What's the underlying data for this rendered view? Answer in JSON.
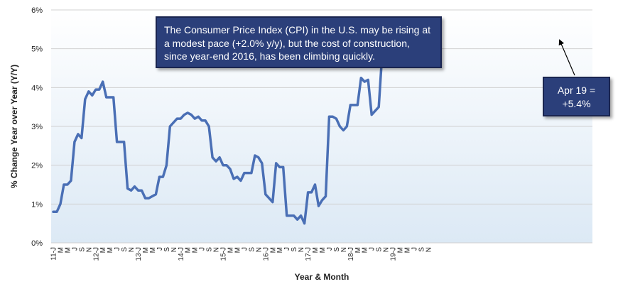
{
  "chart_data": {
    "type": "line",
    "ylabel": "% Change Year over Year (Y/Y)",
    "xlabel": "Year & Month",
    "ylim": [
      0,
      6
    ],
    "y_ticks": [
      "0%",
      "1%",
      "2%",
      "3%",
      "4%",
      "5%",
      "6%"
    ],
    "grid": true,
    "x_tick_labels": [
      "11-J",
      "M",
      "M",
      "J",
      "S",
      "N",
      "12-J",
      "M",
      "M",
      "J",
      "S",
      "N",
      "13-J",
      "M",
      "M",
      "J",
      "S",
      "N",
      "14-J",
      "M",
      "M",
      "J",
      "S",
      "N",
      "15-J",
      "M",
      "M",
      "J",
      "S",
      "N",
      "16-J",
      "M",
      "M",
      "J",
      "S",
      "N",
      "17-J",
      "M",
      "M",
      "J",
      "S",
      "N",
      "18-J",
      "M",
      "M",
      "J",
      "S",
      "N",
      "19-J",
      "M",
      "M",
      "J",
      "S",
      "N"
    ],
    "series": [
      {
        "color": "#4a6fb5",
        "values": [
          0.8,
          0.8,
          1.0,
          1.5,
          1.5,
          1.6,
          2.6,
          2.8,
          2.7,
          3.7,
          3.9,
          3.8,
          3.95,
          3.95,
          4.15,
          3.75,
          3.75,
          3.75,
          2.6,
          2.6,
          2.6,
          1.4,
          1.35,
          1.45,
          1.35,
          1.35,
          1.15,
          1.15,
          1.2,
          1.25,
          1.7,
          1.7,
          2.0,
          3.0,
          3.1,
          3.2,
          3.2,
          3.3,
          3.35,
          3.3,
          3.2,
          3.25,
          3.15,
          3.15,
          3.0,
          2.2,
          2.1,
          2.2,
          2.0,
          2.0,
          1.9,
          1.65,
          1.7,
          1.6,
          1.8,
          1.8,
          1.8,
          2.25,
          2.2,
          2.05,
          1.25,
          1.15,
          1.05,
          2.05,
          1.95,
          1.95,
          0.7,
          0.7,
          0.7,
          0.6,
          0.7,
          0.5,
          1.3,
          1.3,
          1.5,
          0.95,
          1.1,
          1.2,
          3.25,
          3.25,
          3.2,
          3.0,
          2.9,
          3.0,
          3.55,
          3.55,
          3.55,
          4.25,
          4.15,
          4.2,
          3.3,
          3.4,
          3.5,
          4.9,
          5.15,
          5.15,
          4.85,
          4.8,
          4.9,
          5.4
        ]
      }
    ],
    "annotations": [
      {
        "id": "main",
        "text": "The Consumer Price Index (CPI) in the U.S. may be rising at a modest pace (+2.0% y/y), but the cost of construction, since year-end 2016, has been climbing quickly."
      },
      {
        "id": "apr",
        "text": "Apr 19 = +5.4%"
      }
    ]
  },
  "colors": {
    "plot_bg_top": "#ffffff",
    "plot_bg_bottom": "#dce9f5",
    "line": "#4a6fb5",
    "grid": "#d0d0d0",
    "callout_fill": "#2b3f7a"
  }
}
